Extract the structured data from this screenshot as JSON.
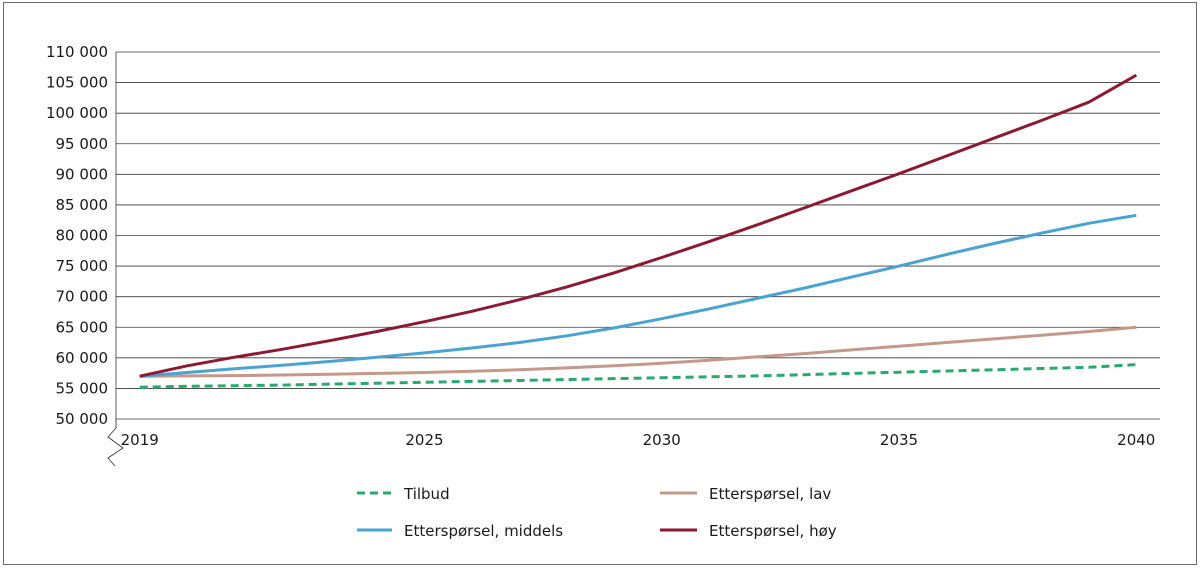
{
  "chart_data": {
    "type": "line",
    "title": "",
    "xlabel": "",
    "ylabel": "",
    "x": [
      2019,
      2020,
      2021,
      2022,
      2023,
      2024,
      2025,
      2026,
      2027,
      2028,
      2029,
      2030,
      2031,
      2032,
      2033,
      2034,
      2035,
      2036,
      2037,
      2038,
      2039,
      2040
    ],
    "xlim": [
      2018.5,
      2040.5
    ],
    "x_ticks": [
      2019,
      2025,
      2030,
      2035,
      2040
    ],
    "x_tick_labels": [
      "2019",
      "2025",
      "2030",
      "2035",
      "2040"
    ],
    "ylim": [
      50000,
      110000
    ],
    "y_ticks": [
      50000,
      55000,
      60000,
      65000,
      70000,
      75000,
      80000,
      85000,
      90000,
      95000,
      100000,
      105000,
      110000
    ],
    "y_tick_labels": [
      "50 000",
      "55 000",
      "60 000",
      "65 000",
      "70 000",
      "75 000",
      "80 000",
      "85 000",
      "90 000",
      "95 000",
      "100 000",
      "105 000",
      "110 000"
    ],
    "grid": "horizontal",
    "axis_break": "y",
    "legend_position": "bottom",
    "series": [
      {
        "name": "Tilbud",
        "color": "#2aa86e",
        "dash": true,
        "values": [
          55200,
          55350,
          55450,
          55550,
          55700,
          55850,
          56000,
          56150,
          56300,
          56450,
          56600,
          56750,
          56900,
          57050,
          57250,
          57450,
          57650,
          57850,
          58050,
          58250,
          58450,
          58900
        ]
      },
      {
        "name": "Etterspørsel, lav",
        "color": "#c4998a",
        "dash": false,
        "values": [
          57000,
          57050,
          57100,
          57200,
          57300,
          57450,
          57600,
          57800,
          58050,
          58350,
          58700,
          59100,
          59600,
          60150,
          60700,
          61300,
          61900,
          62500,
          63100,
          63700,
          64300,
          65000
        ]
      },
      {
        "name": "Etterspørsel, middels",
        "color": "#4aa3d1",
        "dash": false,
        "values": [
          57000,
          57600,
          58200,
          58800,
          59400,
          60100,
          60800,
          61600,
          62500,
          63600,
          64900,
          66400,
          68000,
          69700,
          71400,
          73200,
          75000,
          76900,
          78700,
          80400,
          82000,
          83300
        ]
      },
      {
        "name": "Etterspørsel, høy",
        "color": "#8b1a32",
        "dash": false,
        "values": [
          57000,
          58700,
          60100,
          61400,
          62800,
          64300,
          65900,
          67600,
          69500,
          71600,
          73900,
          76400,
          79000,
          81700,
          84500,
          87300,
          90100,
          93000,
          95900,
          98800,
          101800,
          106200
        ]
      }
    ],
    "legend": [
      {
        "label": "Tilbud",
        "series": 0
      },
      {
        "label": "Etterspørsel, lav",
        "series": 1
      },
      {
        "label": "Etterspørsel, middels",
        "series": 2
      },
      {
        "label": "Etterspørsel, høy",
        "series": 3
      }
    ]
  }
}
